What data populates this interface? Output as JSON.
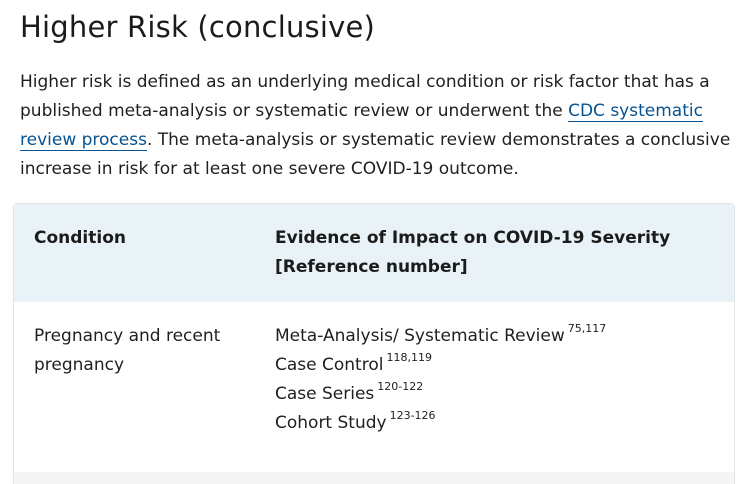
{
  "heading": "Higher Risk (conclusive)",
  "intro": {
    "before_link": "Higher risk is defined as an underlying medical condition or risk factor that has a published meta-analysis or systematic review or underwent the ",
    "link_text": "CDC systematic review process",
    "after_link": ". The meta-analysis or systematic review demonstrates a conclusive increase in risk for at least one severe COVID-19 outcome."
  },
  "table": {
    "headers": {
      "condition": "Condition",
      "evidence_line1": "Evidence of Impact on COVID-19 Severity",
      "evidence_line2": "[Reference number]"
    },
    "rows": [
      {
        "condition": "Pregnancy and recent pregnancy",
        "evidence": [
          {
            "label": "Meta-Analysis/ Systematic Review",
            "refs": "75,117"
          },
          {
            "label": "Case Control",
            "refs": "118,119"
          },
          {
            "label": "Case Series",
            "refs": "120-122"
          },
          {
            "label": "Cohort Study",
            "refs": "123-126"
          }
        ]
      }
    ]
  }
}
